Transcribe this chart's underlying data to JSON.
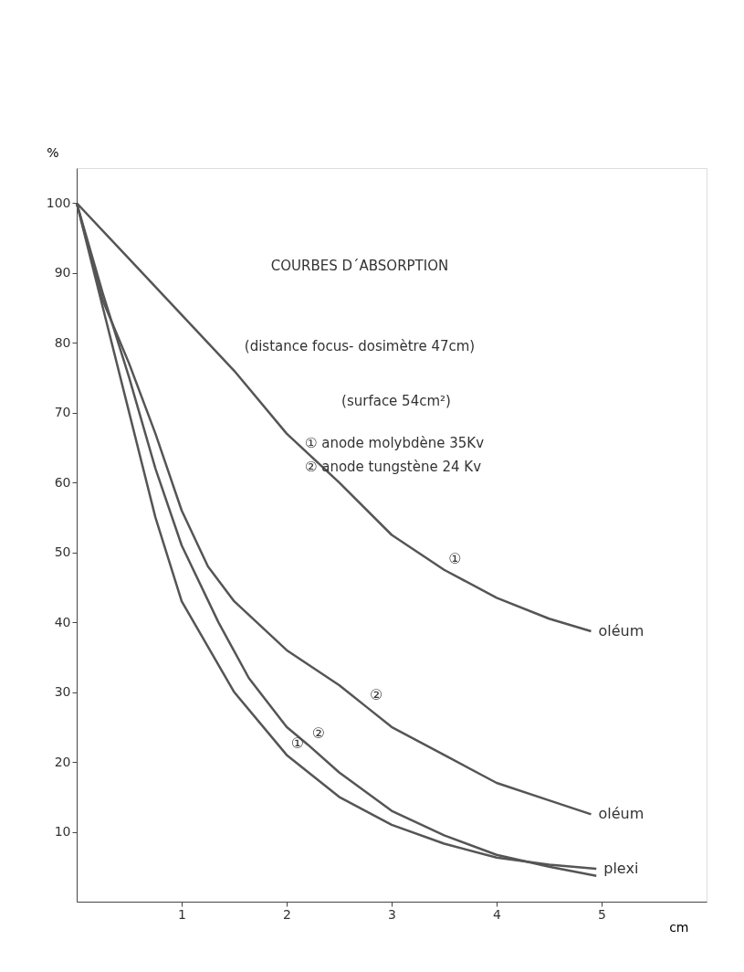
{
  "chart_data": {
    "type": "line",
    "title": "COURBES D´ABSORPTION",
    "subtitle": "(distance focus- dosimètre 47cm)",
    "xlabel": "cm",
    "ylabel": "%",
    "xlim": [
      0,
      6
    ],
    "ylim": [
      0,
      105
    ],
    "xticks": [
      1,
      2,
      3,
      4,
      5
    ],
    "yticks": [
      10,
      20,
      30,
      40,
      50,
      60,
      70,
      80,
      90,
      100
    ],
    "grid": false,
    "legend": false,
    "marker": "none",
    "line_style": "solid",
    "series": [
      {
        "color": "#555555",
        "x": [
          0,
          0.5,
          1,
          1.5,
          2,
          2.5,
          3,
          3.5,
          4,
          4.5,
          4.9
        ],
        "values": [
          100,
          92,
          84,
          76,
          67,
          60,
          52.5,
          47.5,
          43.5,
          40.5,
          38.7
        ]
      },
      {
        "color": "#555555",
        "x": [
          0,
          0.25,
          0.5,
          0.75,
          1,
          1.25,
          1.5,
          2,
          2.5,
          2.75,
          3,
          3.5,
          4,
          4.5,
          4.9
        ],
        "values": [
          100,
          86,
          77,
          67,
          56,
          48,
          43,
          36,
          31,
          28,
          25,
          21,
          17,
          14.5,
          12.5
        ]
      },
      {
        "color": "#555555",
        "x": [
          0,
          0.25,
          0.5,
          0.75,
          1,
          1.35,
          1.64,
          2,
          2.2,
          2.5,
          3,
          3.5,
          4,
          4.5,
          4.95
        ],
        "values": [
          100,
          87,
          75,
          62,
          51,
          40,
          32,
          25,
          22.5,
          18.5,
          13,
          9.5,
          6.7,
          5,
          3.7
        ]
      },
      {
        "color": "#555555",
        "x": [
          0,
          0.25,
          0.5,
          0.75,
          1,
          1.5,
          2,
          2.5,
          3,
          3.5,
          4,
          4.5,
          4.95
        ],
        "values": [
          100,
          85,
          70,
          55,
          43,
          30,
          21,
          15,
          11,
          8.3,
          6.3,
          5.3,
          4.7
        ]
      }
    ],
    "annotations": [
      "(surface 54cm²)",
      "① anode molybdène 35Kv",
      "② anode tungstène 24 Kv",
      {
        "text": "①",
        "x": 3.5,
        "y": 47.5
      },
      {
        "text": "②",
        "x": 2.75,
        "y": 28
      },
      {
        "text": "②",
        "x": 2.2,
        "y": 22.5
      },
      {
        "text": "①",
        "x": 2,
        "y": 21
      },
      {
        "text": "oléum",
        "x": 4.9,
        "y": 38.7
      },
      {
        "text": "oléum",
        "x": 4.9,
        "y": 12.5
      },
      {
        "text": "plexi",
        "x": 4.95,
        "y": 4.7
      }
    ]
  }
}
